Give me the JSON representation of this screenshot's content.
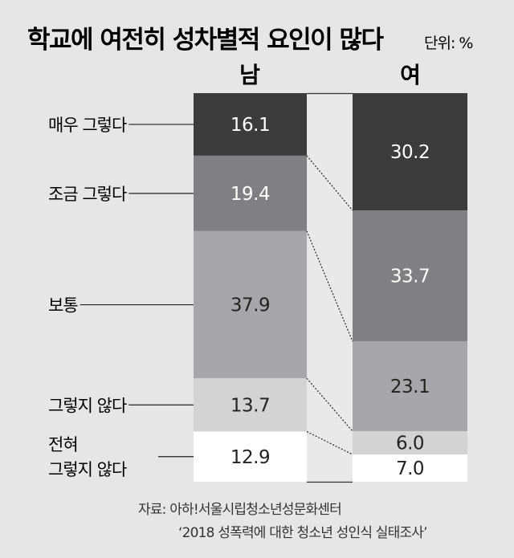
{
  "chart_data": {
    "type": "bar",
    "stacked": true,
    "title": "학교에 여전히 성차별적 요인이 많다",
    "unit": "단위: %",
    "categories": [
      "남",
      "여"
    ],
    "series": [
      {
        "name": "매우 그렇다",
        "values": [
          16.1,
          30.2
        ],
        "color": "#3c3c3e",
        "text_color": "#ffffff"
      },
      {
        "name": "조금 그렇다",
        "values": [
          19.4,
          33.7
        ],
        "color": "#808084",
        "text_color": "#ffffff"
      },
      {
        "name": "보통",
        "values": [
          37.9,
          23.1
        ],
        "color": "#a6a7aa",
        "text_color": "#222222"
      },
      {
        "name": "그렇지 않다",
        "values": [
          13.7,
          6.0
        ],
        "color": "#d2d3d5",
        "text_color": "#222222"
      },
      {
        "name": "전혀 그렇지 않다",
        "name_lines": [
          "전혀",
          "그렇지 않다"
        ],
        "values": [
          12.9,
          7.0
        ],
        "color": "#ffffff",
        "text_color": "#222222"
      }
    ],
    "ylim": [
      0,
      100
    ]
  },
  "source": {
    "line1": "자료: 아하!서울시립청소년성문화센터",
    "line2": "‘2018 성폭력에 대한 청소년 성인식 실태조사’"
  }
}
